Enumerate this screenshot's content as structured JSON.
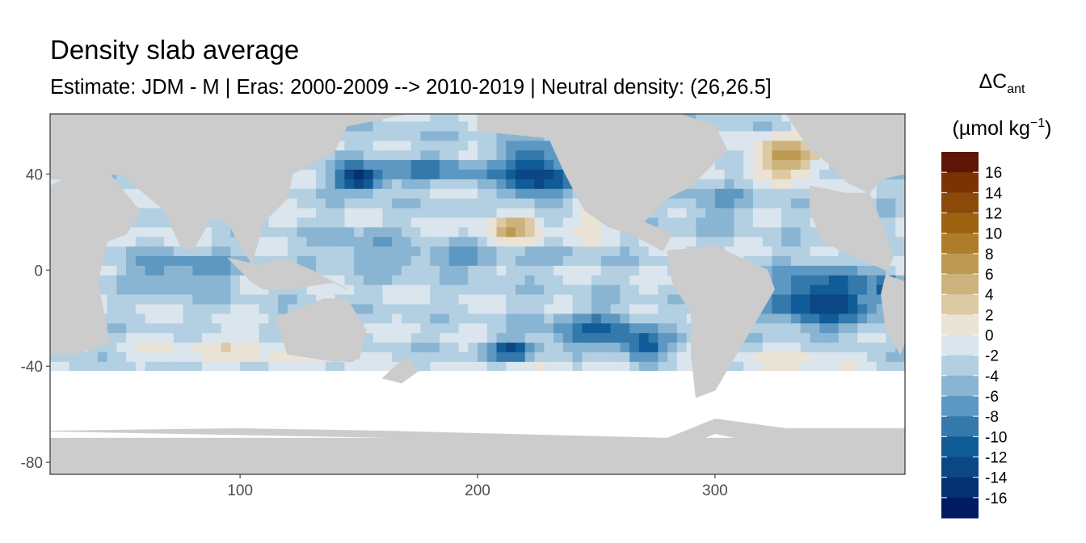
{
  "chart_data": {
    "type": "heatmap",
    "title": "Density slab average",
    "subtitle": "Estimate: JDM - M | Eras: 2000-2009 --> 2010-2019 | Neutral density: (26,26.5]",
    "xlabel": "",
    "ylabel": "",
    "xlim": [
      20,
      380
    ],
    "ylim": [
      -85,
      65
    ],
    "x_ticks": [
      100,
      200,
      300
    ],
    "y_ticks": [
      40,
      0,
      -40,
      -80
    ],
    "grid": true,
    "legend": {
      "position": "right",
      "title_main": "ΔC",
      "title_sub": "ant",
      "unit_main": "(µmol kg",
      "unit_sup": "−1",
      "unit_end": ")",
      "labels": [
        "16",
        "14",
        "12",
        "10",
        "8",
        "6",
        "4",
        "2",
        "0",
        "-2",
        "-4",
        "-6",
        "-8",
        "-10",
        "-12",
        "-14",
        "-16"
      ],
      "colors": [
        "#5e1505",
        "#7b3305",
        "#8c4a0a",
        "#9c620f",
        "#ad7d2a",
        "#bd9a52",
        "#cdb27c",
        "#ddc9a3",
        "#ebe3d6",
        "#dae5ed",
        "#b3cfe2",
        "#89b5d3",
        "#5d98c2",
        "#3379ab",
        "#0f5c98",
        "#0a4784",
        "#053170",
        "#011b62"
      ]
    },
    "land_color": "#cccccc",
    "series": []
  }
}
